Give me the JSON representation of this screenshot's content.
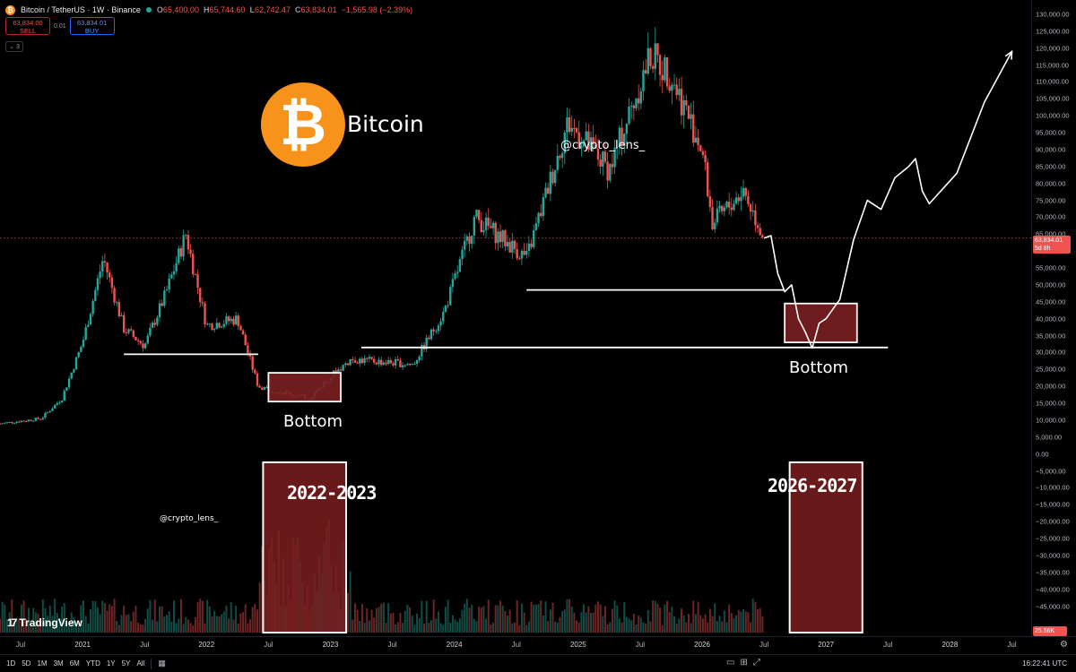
{
  "header": {
    "symbol": "Bitcoin / TetherUS · 1W · Binance",
    "ohlc": {
      "open_label": "O",
      "open": "65,400.00",
      "high_label": "H",
      "high": "65,744.60",
      "low_label": "L",
      "low": "62,742.47",
      "close_label": "C",
      "close": "63,834.01",
      "change": "−1,565.98 (−2.39%)"
    },
    "sell_price": "63,834.00",
    "sell_label": "SELL",
    "spread": "0.01",
    "buy_price": "63,834.01",
    "buy_label": "BUY",
    "indicator_count": "3"
  },
  "annotations": {
    "coin_name": "Bitcoin",
    "coin_symbol": "₿",
    "handle_top": "@crypto_lens_",
    "handle_bottom": "@crypto_lens_",
    "bottom_left": "Bottom",
    "bottom_right": "Bottom",
    "period_left": "2022-2023",
    "period_right": "2026-2027"
  },
  "price_axis": {
    "ticks": [
      "130,000.00",
      "125,000.00",
      "120,000.00",
      "115,000.00",
      "110,000.00",
      "105,000.00",
      "100,000.00",
      "95,000.00",
      "90,000.00",
      "85,000.00",
      "80,000.00",
      "75,000.00",
      "70,000.00",
      "65,000.00",
      "60,000.00",
      "55,000.00",
      "50,000.00",
      "45,000.00",
      "40,000.00",
      "35,000.00",
      "30,000.00",
      "25,000.00",
      "20,000.00",
      "15,000.00",
      "10,000.00",
      "5,000.00",
      "0.00",
      "−5,000.00",
      "−10,000.00",
      "−15,000.00",
      "−20,000.00",
      "−25,000.00",
      "−30,000.00",
      "−35,000.00",
      "−40,000.00",
      "−45,000.00"
    ],
    "last_price": "63,834.01",
    "last_countdown": "5d 8h",
    "volume_badge": "25.56K"
  },
  "time_axis": {
    "ticks": [
      "Jul",
      "2021",
      "Jul",
      "2022",
      "Jul",
      "2023",
      "Jul",
      "2024",
      "Jul",
      "2025",
      "Jul",
      "2026",
      "Jul",
      "2027",
      "Jul",
      "2028",
      "Jul"
    ]
  },
  "toolbar": {
    "ranges": [
      "1D",
      "5D",
      "1M",
      "3M",
      "6M",
      "YTD",
      "1Y",
      "5Y",
      "All"
    ],
    "clock": "16:22:41 UTC"
  },
  "branding": {
    "name": "TradingView"
  },
  "colors": {
    "up": "#26a69a",
    "down": "#ef5350",
    "box_fill": "#7a1f20",
    "accent_orange": "#f7931a"
  },
  "chart_data": {
    "type": "candlestick",
    "title": "Bitcoin / TetherUS · 1W · Binance",
    "x_range": [
      "2020-05",
      "2028-08"
    ],
    "ylim": [
      -47500,
      130000
    ],
    "weekly_close_path": [
      [
        "2020-05",
        9000
      ],
      [
        "2020-09",
        10500
      ],
      [
        "2020-11",
        16500
      ],
      [
        "2021-01",
        33000
      ],
      [
        "2021-03",
        58000
      ],
      [
        "2021-05",
        37000
      ],
      [
        "2021-07",
        32000
      ],
      [
        "2021-09",
        47000
      ],
      [
        "2021-11",
        65000
      ],
      [
        "2022-01",
        38000
      ],
      [
        "2022-04",
        40000
      ],
      [
        "2022-06",
        20000
      ],
      [
        "2022-11",
        16500
      ],
      [
        "2023-01",
        23000
      ],
      [
        "2023-03",
        28000
      ],
      [
        "2023-09",
        26500
      ],
      [
        "2023-12",
        42000
      ],
      [
        "2024-03",
        70000
      ],
      [
        "2024-08",
        58000
      ],
      [
        "2024-12",
        98000
      ],
      [
        "2025-04",
        84000
      ],
      [
        "2025-08",
        118000
      ],
      [
        "2025-10",
        112000
      ],
      [
        "2026-01",
        90000
      ],
      [
        "2026-02",
        68000
      ],
      [
        "2026-05",
        78000
      ],
      [
        "2026-07",
        63834
      ]
    ],
    "projection_path": [
      [
        "2026-07",
        63834
      ],
      [
        "2026-09",
        48000
      ],
      [
        "2026-11",
        36000
      ],
      [
        "2027-01",
        40000
      ],
      [
        "2027-05",
        75000
      ],
      [
        "2027-09",
        85000
      ],
      [
        "2027-11",
        74000
      ],
      [
        "2028-07",
        119000
      ]
    ],
    "support_levels": [
      {
        "price": 29500,
        "from": "2021-05",
        "to": "2022-06"
      },
      {
        "price": 31500,
        "from": "2023-04",
        "to": "2027-07"
      },
      {
        "price": 48500,
        "from": "2024-08",
        "to": "2026-09"
      }
    ],
    "bottom_zones": [
      {
        "label": "Bottom",
        "from": "2022-07",
        "to": "2023-02",
        "low": 15500,
        "high": 24000
      },
      {
        "label": "Bottom",
        "from": "2026-09",
        "to": "2027-04",
        "low": 33000,
        "high": 44500
      }
    ],
    "period_boxes": [
      {
        "label": "2022-2023",
        "from": "2022-07",
        "to": "2023-02"
      },
      {
        "label": "2026-2027",
        "from": "2026-10",
        "to": "2027-04"
      }
    ]
  }
}
